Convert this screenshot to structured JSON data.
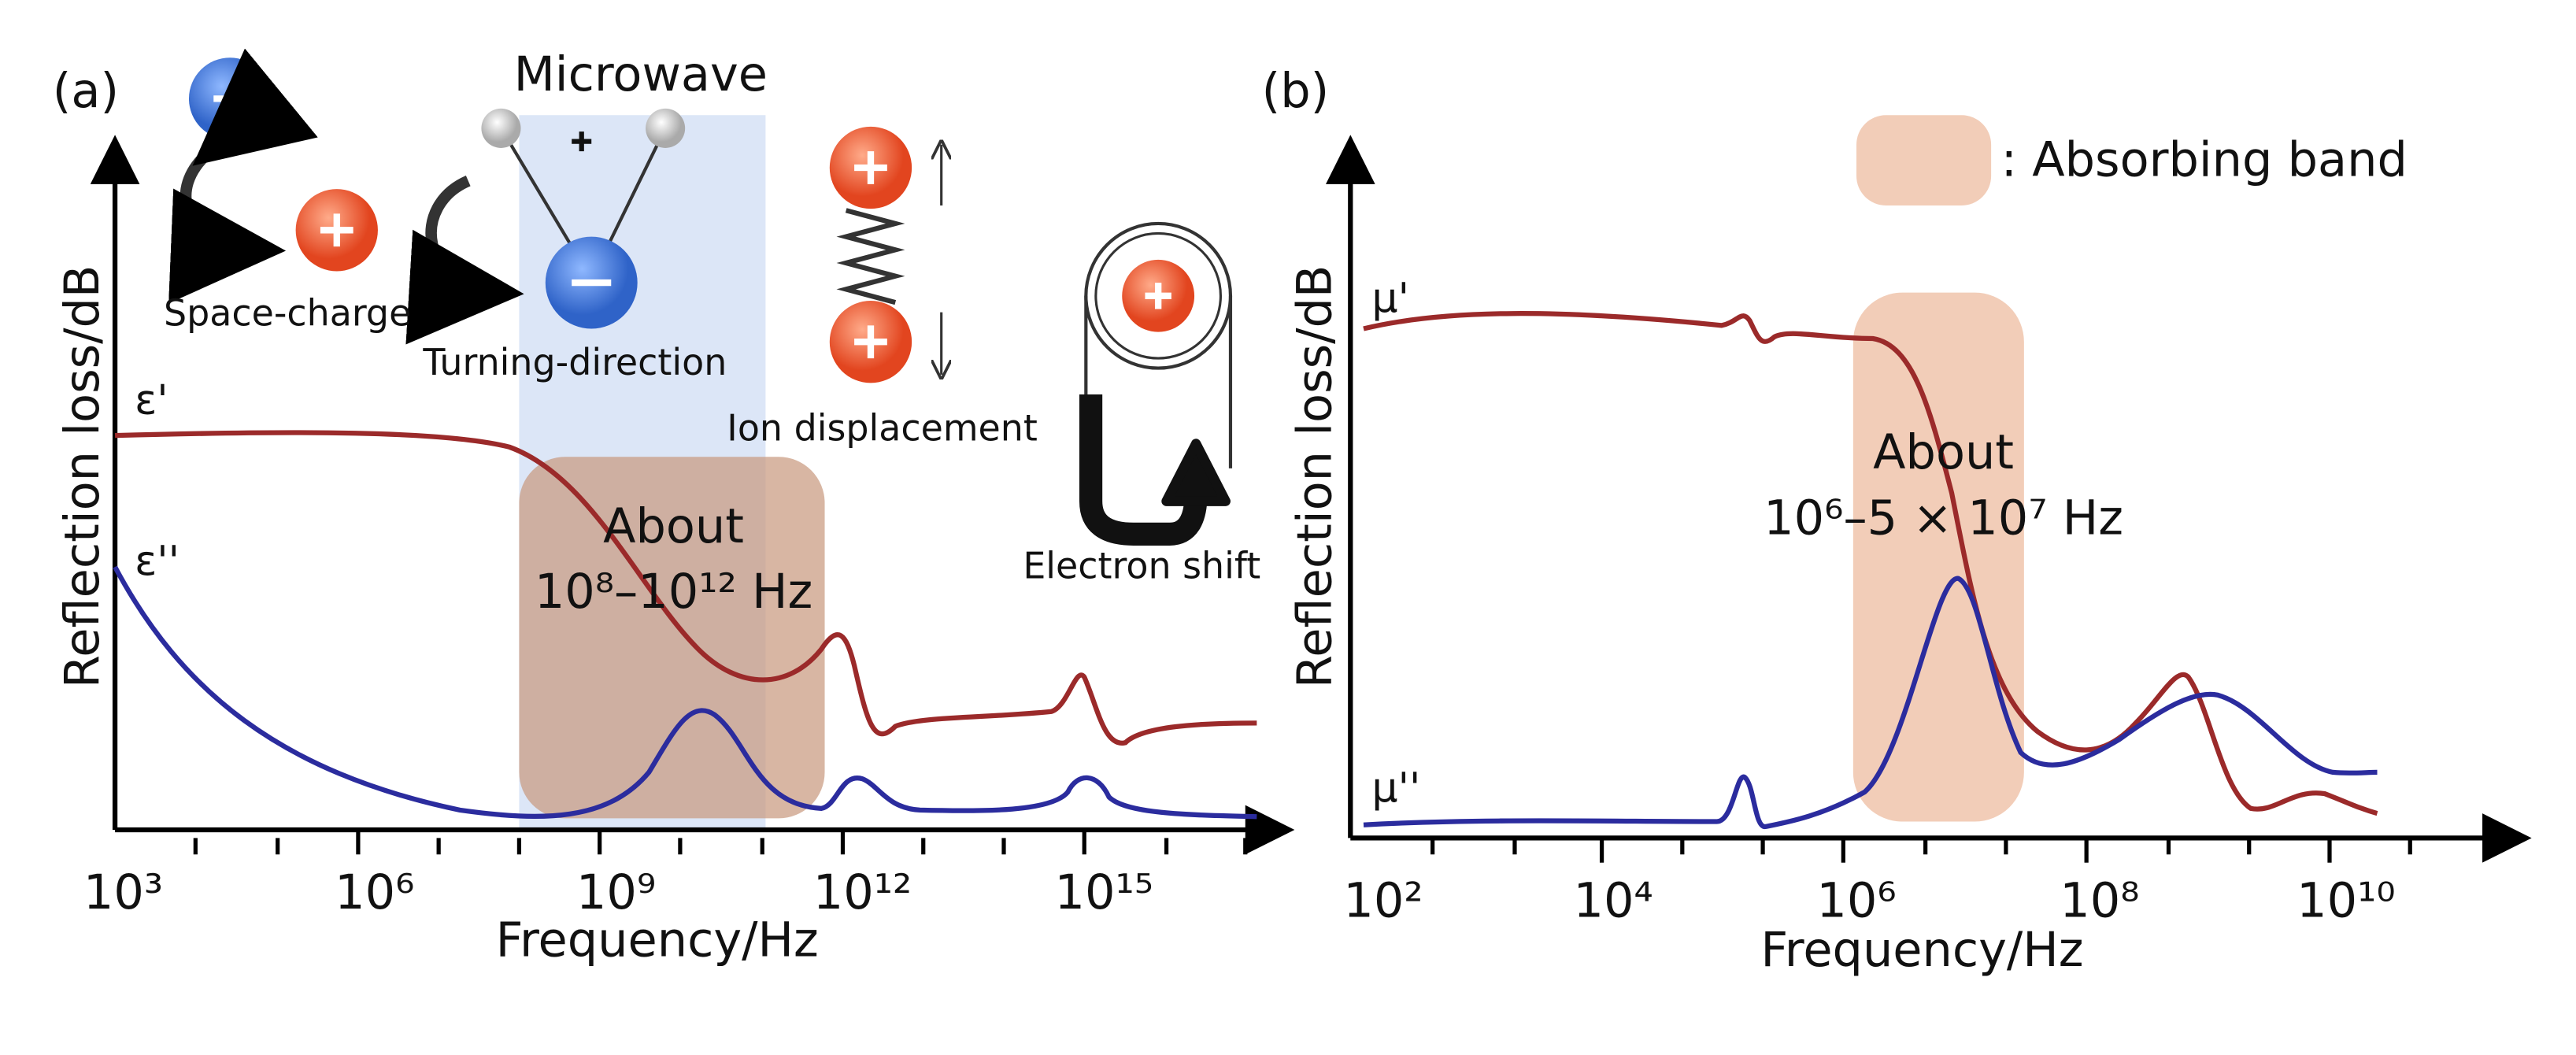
{
  "panel_a": {
    "label": "(a)",
    "microwave": "Microwave",
    "space_charge": "Space-charge",
    "turning_direction": "Turning-direction",
    "ion_displacement": "Ion displacement",
    "electron_shift": "Electron shift",
    "y_axis": "Reflection loss/dB",
    "x_axis": "Frequency/Hz",
    "real_curve": "ε'",
    "imag_curve": "ε''",
    "band_title": "About",
    "band_range": "10⁸–10¹² Hz",
    "ticks": [
      "10³",
      "10⁶",
      "10⁹",
      "10¹²",
      "10¹⁵"
    ]
  },
  "panel_b": {
    "label": "(b)",
    "legend": ": Absorbing band",
    "y_axis": "Reflection loss/dB",
    "x_axis": "Frequency/Hz",
    "real_curve": "μ'",
    "imag_curve": "μ''",
    "band_title": "About",
    "band_range": "10⁶–5 × 10⁷ Hz",
    "ticks": [
      "10²",
      "10⁴",
      "10⁶",
      "10⁸",
      "10¹⁰"
    ]
  }
}
